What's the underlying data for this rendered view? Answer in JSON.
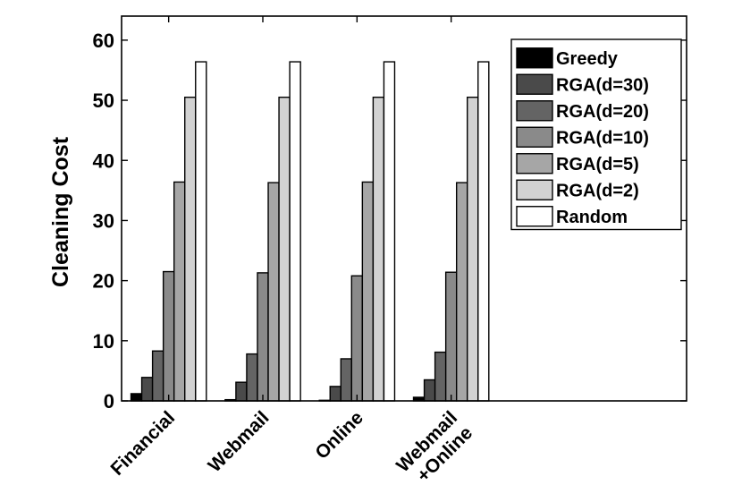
{
  "chart_data": {
    "type": "bar",
    "title": "",
    "xlabel": "",
    "ylabel": "Cleaning Cost",
    "ylim": [
      0,
      64
    ],
    "yticks": [
      0,
      10,
      20,
      30,
      40,
      50,
      60
    ],
    "x_domain": [
      0.5,
      6.5
    ],
    "grid": false,
    "legend_position": "top-right",
    "categories": [
      [
        "Financial"
      ],
      [
        "Webmail"
      ],
      [
        "Online"
      ],
      [
        "Webmail",
        "+Online"
      ]
    ],
    "series": [
      {
        "name": "Greedy",
        "color": "#000000",
        "values": [
          1.2,
          0.2,
          0.1,
          0.6
        ]
      },
      {
        "name": "RGA(d=30)",
        "color": "#4a4a4a",
        "values": [
          3.9,
          3.1,
          2.4,
          3.5
        ]
      },
      {
        "name": "RGA(d=20)",
        "color": "#646464",
        "values": [
          8.3,
          7.8,
          7.0,
          8.1
        ]
      },
      {
        "name": "RGA(d=10)",
        "color": "#8a8a8a",
        "values": [
          21.5,
          21.3,
          20.8,
          21.4
        ]
      },
      {
        "name": "RGA(d=5)",
        "color": "#a6a6a6",
        "values": [
          36.4,
          36.3,
          36.4,
          36.3
        ]
      },
      {
        "name": "RGA(d=2)",
        "color": "#d2d2d2",
        "values": [
          50.5,
          50.5,
          50.5,
          50.5
        ]
      },
      {
        "name": "Random",
        "color": "#ffffff",
        "values": [
          56.4,
          56.4,
          56.4,
          56.4
        ]
      }
    ]
  }
}
